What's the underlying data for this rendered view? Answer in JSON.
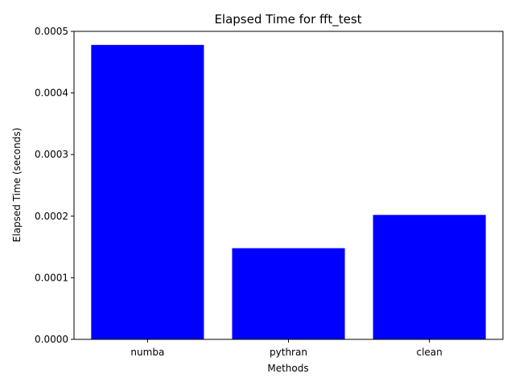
{
  "chart_data": {
    "type": "bar",
    "title": "Elapsed Time for fft_test",
    "xlabel": "Methods",
    "ylabel": "Elapsed Time (seconds)",
    "categories": [
      "numba",
      "pythran",
      "clean"
    ],
    "values": [
      0.000478,
      0.000148,
      0.000202
    ],
    "ylim": [
      0,
      0.0005
    ],
    "yticks": [
      "0.0000",
      "0.0001",
      "0.0002",
      "0.0003",
      "0.0004",
      "0.0005"
    ],
    "bar_color": "#0000ff",
    "grid": false
  }
}
